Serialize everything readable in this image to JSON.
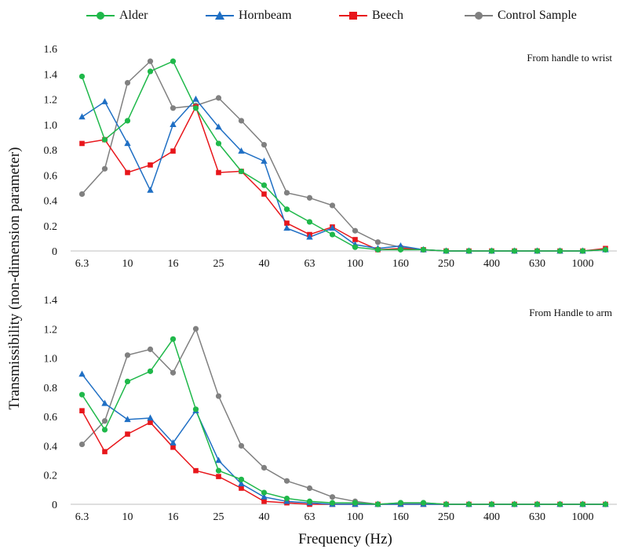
{
  "figure": {
    "ylabel": "Transmissibility (non-dimension parameter)",
    "xlabel": "Frequency (Hz)"
  },
  "legend": [
    {
      "name": "Alder",
      "color": "#1fb84a",
      "marker": "circle"
    },
    {
      "name": "Hornbeam",
      "color": "#1f6fc4",
      "marker": "triangle"
    },
    {
      "name": "Beech",
      "color": "#e8161b",
      "marker": "square"
    },
    {
      "name": "Control Sample",
      "color": "#808080",
      "marker": "circle"
    }
  ],
  "chart_data": [
    {
      "type": "line",
      "annotation": "From handle to wrist",
      "x": [
        "6.3",
        "8",
        "10",
        "12.5",
        "16",
        "20",
        "25",
        "31.5",
        "40",
        "50",
        "63",
        "80",
        "100",
        "125",
        "160",
        "200",
        "250",
        "315",
        "400",
        "500",
        "630",
        "800",
        "1000",
        "1250"
      ],
      "x_tick_labels": [
        "6.3",
        "10",
        "16",
        "25",
        "40",
        "63",
        "100",
        "160",
        "250",
        "400",
        "630",
        "1000"
      ],
      "y_ticks": [
        "0",
        "0.2",
        "0.4",
        "0.6",
        "0.8",
        "1.0",
        "1.2",
        "1.4",
        "1.6"
      ],
      "ylim": [
        0,
        1.6
      ],
      "grid": false,
      "legend_position": "top",
      "series": [
        {
          "name": "Alder",
          "values": [
            1.38,
            0.88,
            1.03,
            1.42,
            1.5,
            1.13,
            0.85,
            0.63,
            0.52,
            0.33,
            0.23,
            0.13,
            0.03,
            0.01,
            0.01,
            0.01,
            0,
            0,
            0,
            0,
            0,
            0,
            0,
            0.01
          ]
        },
        {
          "name": "Hornbeam",
          "values": [
            1.06,
            1.18,
            0.85,
            0.48,
            1.0,
            1.2,
            0.98,
            0.79,
            0.71,
            0.18,
            0.11,
            0.18,
            0.05,
            0.02,
            0.04,
            0.01,
            0,
            0,
            0,
            0,
            0,
            0,
            0,
            0.01
          ]
        },
        {
          "name": "Beech",
          "values": [
            0.85,
            0.88,
            0.62,
            0.68,
            0.79,
            1.14,
            0.62,
            0.63,
            0.45,
            0.22,
            0.13,
            0.19,
            0.09,
            0.01,
            0.02,
            0.01,
            0,
            0,
            0,
            0,
            0,
            0,
            0,
            0.02
          ]
        },
        {
          "name": "Control Sample",
          "values": [
            0.45,
            0.65,
            1.33,
            1.5,
            1.13,
            1.15,
            1.21,
            1.03,
            0.84,
            0.46,
            0.42,
            0.36,
            0.16,
            0.07,
            0.03,
            0.01,
            0,
            0,
            0,
            0,
            0,
            0,
            0,
            0.01
          ]
        }
      ]
    },
    {
      "type": "line",
      "annotation": "From Handle to arm",
      "x": [
        "6.3",
        "8",
        "10",
        "12.5",
        "16",
        "20",
        "25",
        "31.5",
        "40",
        "50",
        "63",
        "80",
        "100",
        "125",
        "160",
        "200",
        "250",
        "315",
        "400",
        "500",
        "630",
        "800",
        "1000",
        "1250"
      ],
      "x_tick_labels": [
        "6.3",
        "10",
        "16",
        "25",
        "40",
        "63",
        "100",
        "160",
        "250",
        "400",
        "630",
        "1000"
      ],
      "y_ticks": [
        "0",
        "0.2",
        "0.4",
        "0.6",
        "0.8",
        "1.0",
        "1.2",
        "1.4"
      ],
      "ylim": [
        0,
        1.4
      ],
      "grid": false,
      "series": [
        {
          "name": "Alder",
          "values": [
            0.75,
            0.51,
            0.84,
            0.91,
            1.13,
            0.65,
            0.23,
            0.17,
            0.08,
            0.04,
            0.02,
            0.01,
            0.01,
            0,
            0.01,
            0.01,
            0,
            0,
            0,
            0,
            0,
            0,
            0,
            0
          ]
        },
        {
          "name": "Hornbeam",
          "values": [
            0.89,
            0.69,
            0.58,
            0.59,
            0.42,
            0.64,
            0.3,
            0.14,
            0.05,
            0.02,
            0.01,
            0,
            0,
            0,
            0,
            0,
            0,
            0,
            0,
            0,
            0,
            0,
            0,
            0
          ]
        },
        {
          "name": "Beech",
          "values": [
            0.64,
            0.36,
            0.48,
            0.56,
            0.39,
            0.23,
            0.19,
            0.11,
            0.02,
            0.01,
            0,
            0,
            0,
            0,
            0,
            0,
            0,
            0,
            0,
            0,
            0,
            0,
            0,
            0
          ]
        },
        {
          "name": "Control Sample",
          "values": [
            0.41,
            0.57,
            1.02,
            1.06,
            0.9,
            1.2,
            0.74,
            0.4,
            0.25,
            0.16,
            0.11,
            0.05,
            0.02,
            0,
            0.01,
            0.01,
            0,
            0,
            0,
            0,
            0,
            0,
            0,
            0
          ]
        }
      ]
    }
  ]
}
